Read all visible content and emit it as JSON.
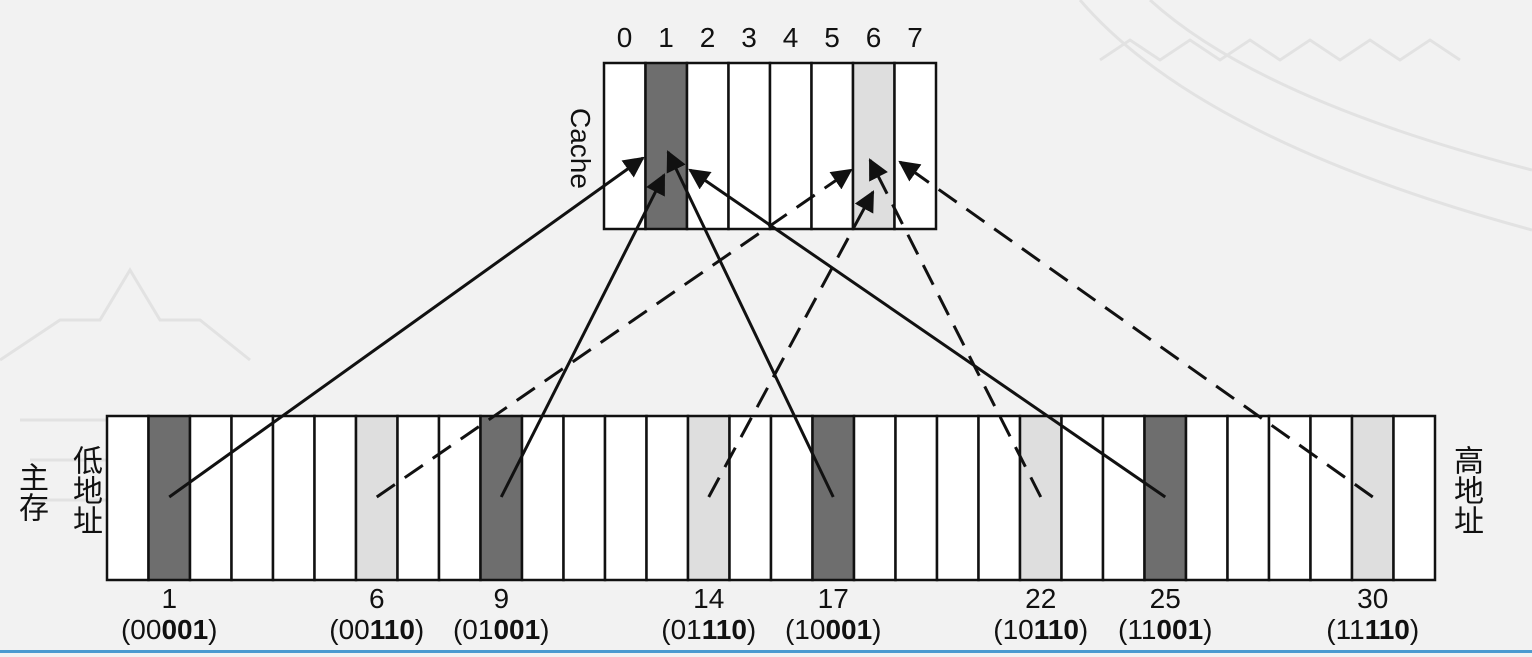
{
  "cache": {
    "label": "Cache",
    "indices": [
      "0",
      "1",
      "2",
      "3",
      "4",
      "5",
      "6",
      "7"
    ],
    "dark_slot": 1,
    "light_slot": 6
  },
  "main_memory": {
    "label": "主存",
    "low_label": "低地址",
    "high_label": "高地址",
    "block_count": 32,
    "dark_blocks": [
      1,
      9,
      17,
      25
    ],
    "light_blocks": [
      6,
      14,
      22,
      30
    ]
  },
  "blocks": [
    {
      "num": "1",
      "prefix": "(00",
      "bits": "001",
      "suffix": ")",
      "kind": "dark"
    },
    {
      "num": "6",
      "prefix": "(00",
      "bits": "110",
      "suffix": ")",
      "kind": "light"
    },
    {
      "num": "9",
      "prefix": "(01",
      "bits": "001",
      "suffix": ")",
      "kind": "dark"
    },
    {
      "num": "14",
      "prefix": "(01",
      "bits": "110",
      "suffix": ")",
      "kind": "light"
    },
    {
      "num": "17",
      "prefix": "(10",
      "bits": "001",
      "suffix": ")",
      "kind": "dark"
    },
    {
      "num": "22",
      "prefix": "(10",
      "bits": "110",
      "suffix": ")",
      "kind": "light"
    },
    {
      "num": "25",
      "prefix": "(11",
      "bits": "001",
      "suffix": ")",
      "kind": "dark"
    },
    {
      "num": "30",
      "prefix": "(11",
      "bits": "110",
      "suffix": ")",
      "kind": "light"
    }
  ],
  "colors": {
    "dark_fill": "#6e6e6e",
    "light_fill": "#dedede",
    "empty_fill": "#ffffff",
    "stroke": "#111111"
  }
}
